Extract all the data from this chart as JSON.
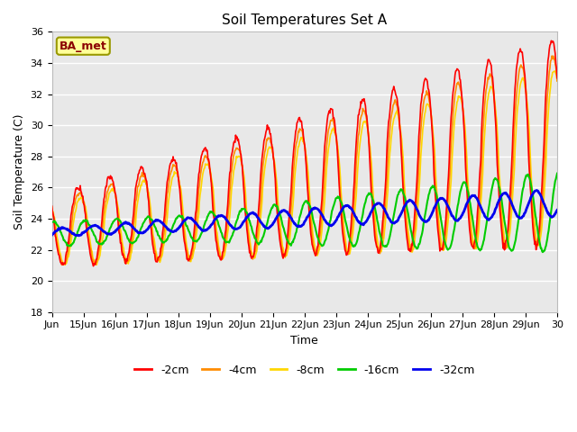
{
  "title": "Soil Temperatures Set A",
  "xlabel": "Time",
  "ylabel": "Soil Temperature (C)",
  "ylim": [
    18,
    36
  ],
  "xlim_days": [
    14,
    30
  ],
  "annotation": "BA_met",
  "legend_labels": [
    "-2cm",
    "-4cm",
    "-8cm",
    "-16cm",
    "-32cm"
  ],
  "line_colors": [
    "#FF0000",
    "#FF8C00",
    "#FFD700",
    "#00CC00",
    "#0000EE"
  ],
  "line_widths": [
    1.2,
    1.2,
    1.2,
    1.5,
    2.0
  ],
  "background_color": "#FFFFFF",
  "plot_bg_color": "#E8E8E8",
  "grid_color": "#FFFFFF",
  "tick_dates": [
    "Jun",
    "15Jun",
    "16Jun",
    "17Jun",
    "18Jun",
    "19Jun",
    "20Jun",
    "21Jun",
    "22Jun",
    "23Jun",
    "24Jun",
    "25Jun",
    "26Jun",
    "27Jun",
    "28Jun",
    "29Jun",
    "30"
  ],
  "tick_positions": [
    14,
    15,
    16,
    17,
    18,
    19,
    20,
    21,
    22,
    23,
    24,
    25,
    26,
    27,
    28,
    29,
    30
  ]
}
